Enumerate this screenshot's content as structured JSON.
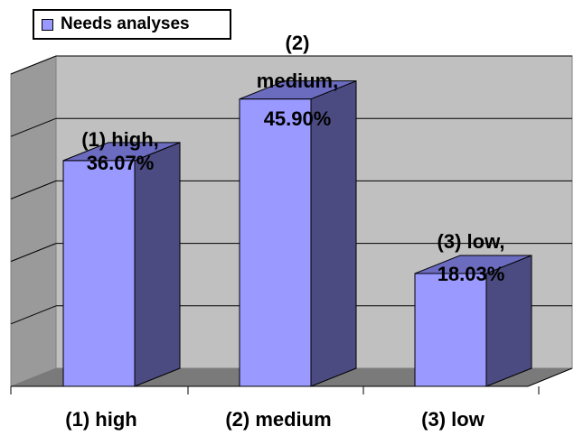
{
  "chart_data": {
    "type": "bar",
    "categories": [
      "(1) high",
      "(2) medium",
      "(3) low"
    ],
    "series": [
      {
        "name": "Needs analyses",
        "values": [
          36.07,
          45.9,
          18.03
        ]
      }
    ],
    "data_labels": [
      {
        "category": "(1) high,",
        "value": "36.07%"
      },
      {
        "category": "(2) medium,",
        "value": "45.90%"
      },
      {
        "category": "(3) low,",
        "value": "18.03%"
      }
    ],
    "ylim": [
      0,
      50
    ],
    "grid": true,
    "legend_position": "top-left",
    "colors": {
      "bar_front": "#9999ff",
      "bar_side": "#4b4b82",
      "bar_top": "#6b6bc0",
      "back_wall": "#c0c0c0",
      "side_wall": "#9a9a9a",
      "floor": "#7a7a7a",
      "gridline": "#000000"
    }
  }
}
